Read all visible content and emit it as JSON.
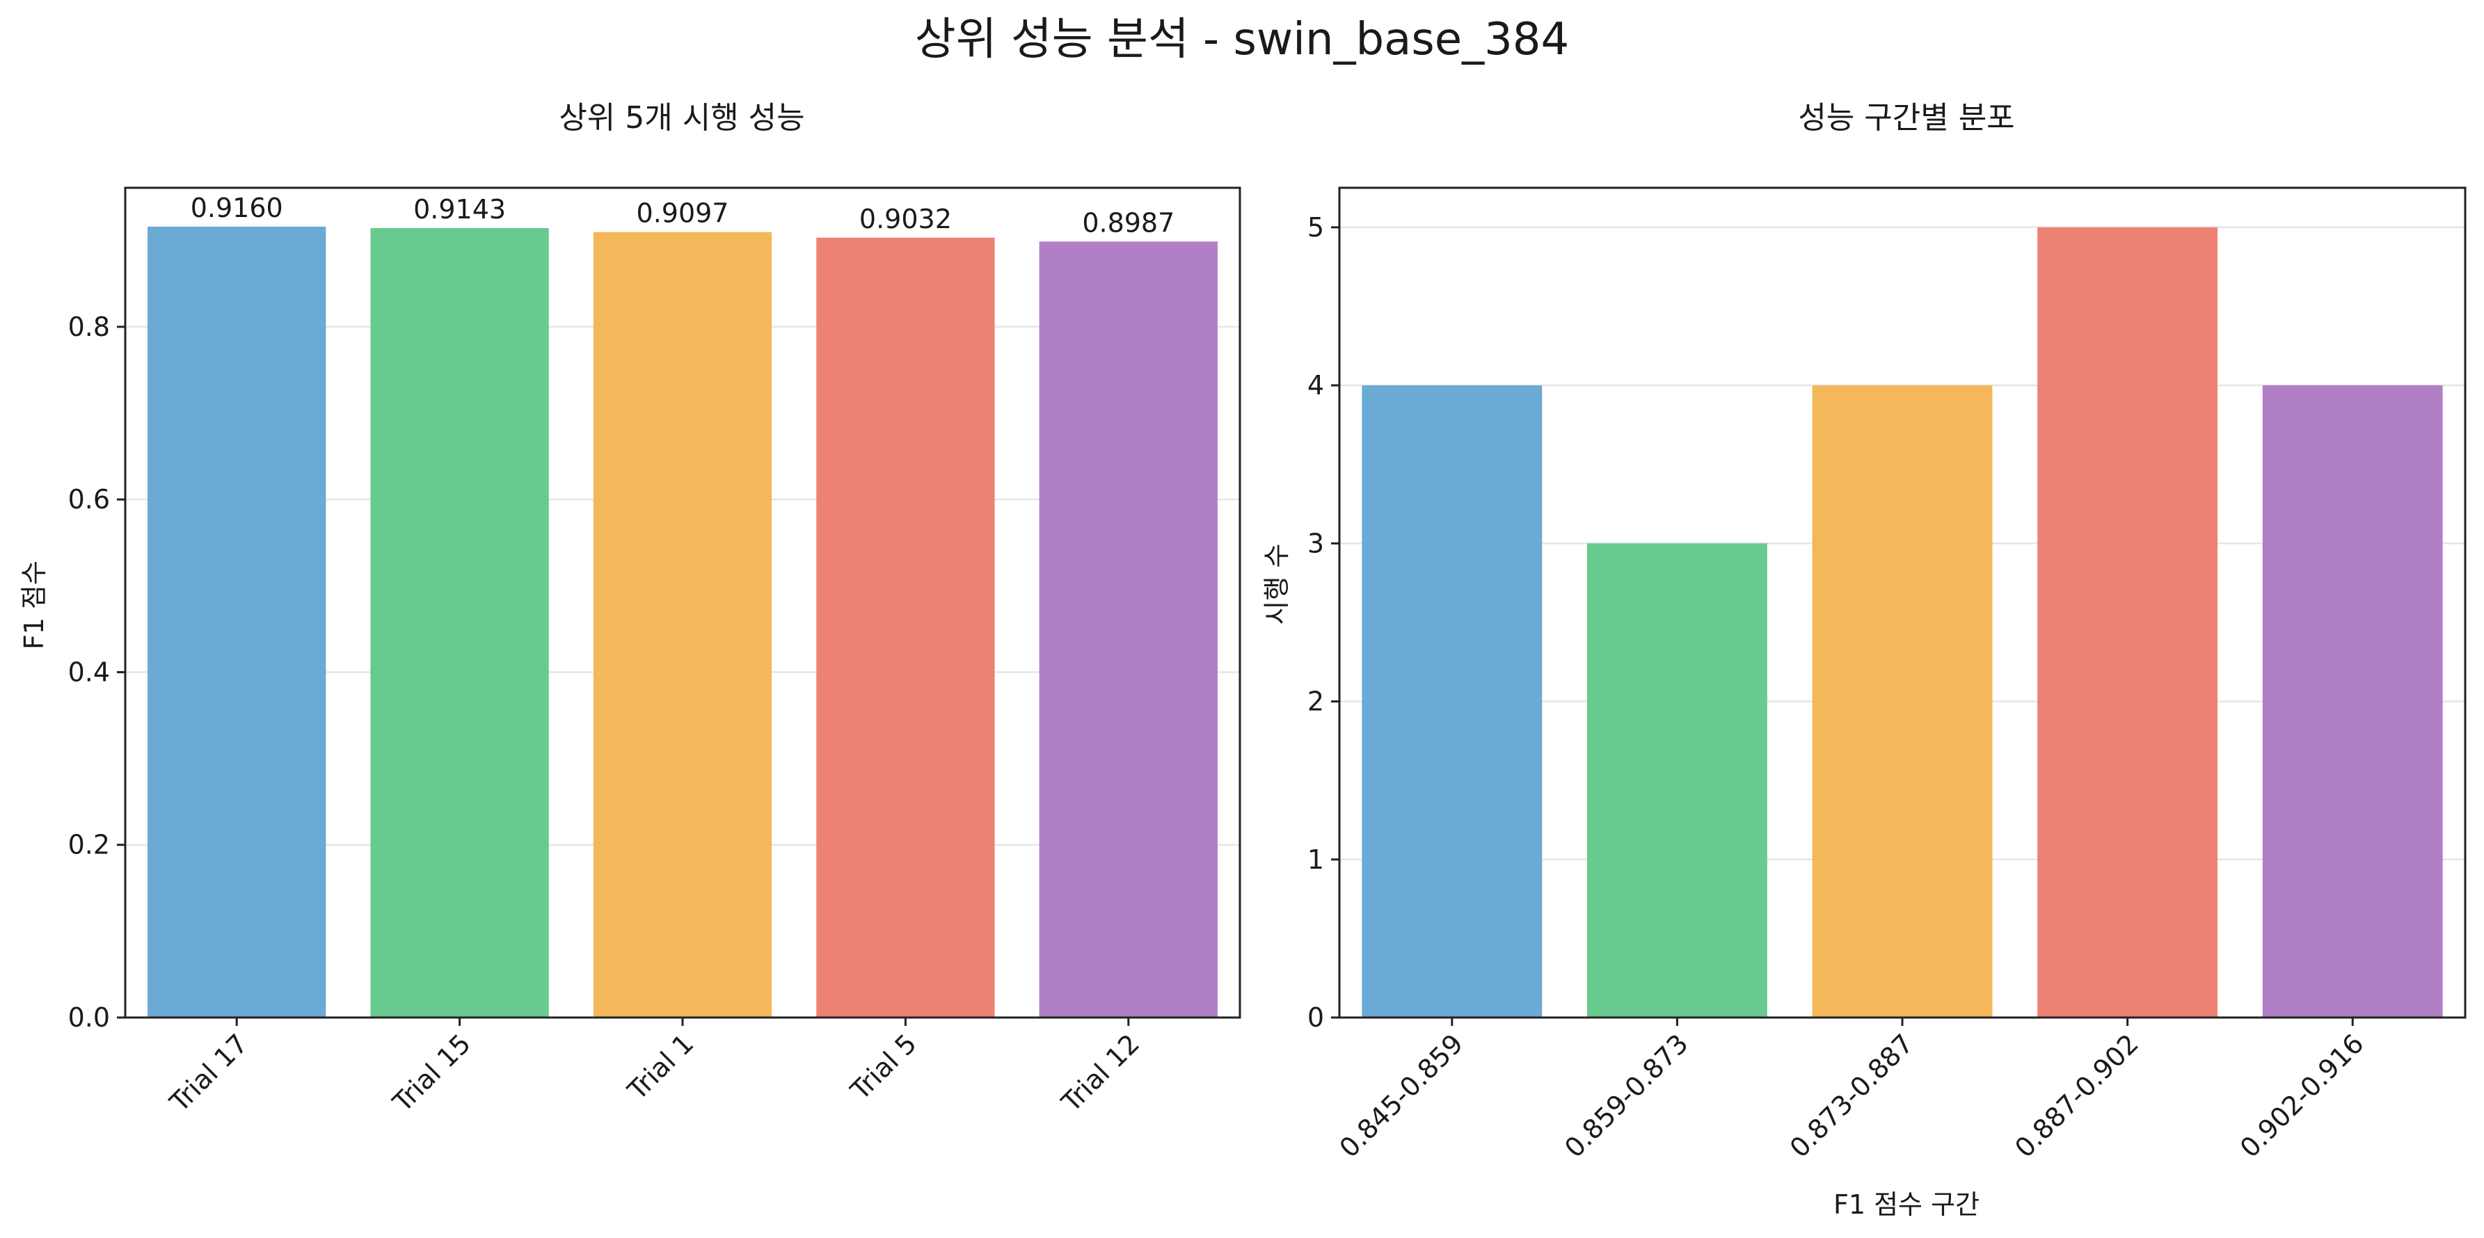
{
  "figure": {
    "title": "상위 성능 분석 - swin_base_384"
  },
  "chart_data": [
    {
      "type": "bar",
      "title": "상위 5개 시행 성능",
      "xlabel": "",
      "ylabel": "F1 점수",
      "categories": [
        "Trial 17",
        "Trial 15",
        "Trial 1",
        "Trial 5",
        "Trial 12"
      ],
      "values": [
        0.916,
        0.9143,
        0.9097,
        0.9032,
        0.8987
      ],
      "value_labels": [
        "0.9160",
        "0.9143",
        "0.9097",
        "0.9032",
        "0.8987"
      ],
      "colors": [
        "#6baad4",
        "#68ca8e",
        "#f4b85a",
        "#ed8274",
        "#b07fc6"
      ],
      "ylim": [
        0,
        0.961
      ],
      "yticks": [
        0.0,
        0.2,
        0.4,
        0.6,
        0.8
      ],
      "ytick_labels": [
        "0.0",
        "0.2",
        "0.4",
        "0.6",
        "0.8"
      ],
      "grid": "y",
      "xtick_rotation": 45
    },
    {
      "type": "bar",
      "title": "성능 구간별 분포",
      "xlabel": "F1 점수 구간",
      "ylabel": "시행 수",
      "categories": [
        "0.845-0.859",
        "0.859-0.873",
        "0.873-0.887",
        "0.887-0.902",
        "0.902-0.916"
      ],
      "values": [
        4,
        3,
        4,
        5,
        4
      ],
      "colors": [
        "#6baad4",
        "#68ca8e",
        "#f4b85a",
        "#ed8274",
        "#b07fc6"
      ],
      "ylim": [
        0,
        5.25
      ],
      "yticks": [
        0,
        1,
        2,
        3,
        4,
        5
      ],
      "ytick_labels": [
        "0",
        "1",
        "2",
        "3",
        "4",
        "5"
      ],
      "grid": "y",
      "xtick_rotation": 45
    }
  ]
}
